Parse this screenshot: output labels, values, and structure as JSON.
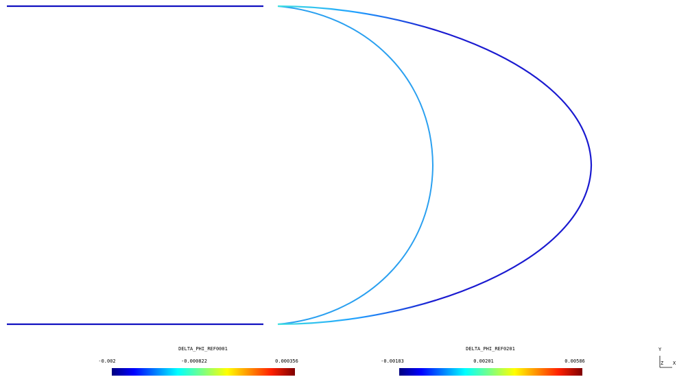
{
  "colorbars": [
    {
      "title": "DELTA_PHI_REF0001",
      "ticks": [
        "-0.002",
        "-0.000822",
        "0.000356"
      ]
    },
    {
      "title": "DELTA_PHI_REF0201",
      "ticks": [
        "-0.00183",
        "0.00201",
        "0.00586"
      ]
    }
  ],
  "axes": {
    "y": "Y",
    "z": "Z",
    "x": "X"
  },
  "colors": {
    "jet": [
      "#00007f",
      "#0000ff",
      "#007fff",
      "#00ffff",
      "#7fff7f",
      "#ffff00",
      "#ff7f00",
      "#ff0000",
      "#7f0000"
    ],
    "outer_curve": "#1a1ad0",
    "inner_curve": "#2aa0f0",
    "straight_lines": "#1010c0"
  }
}
